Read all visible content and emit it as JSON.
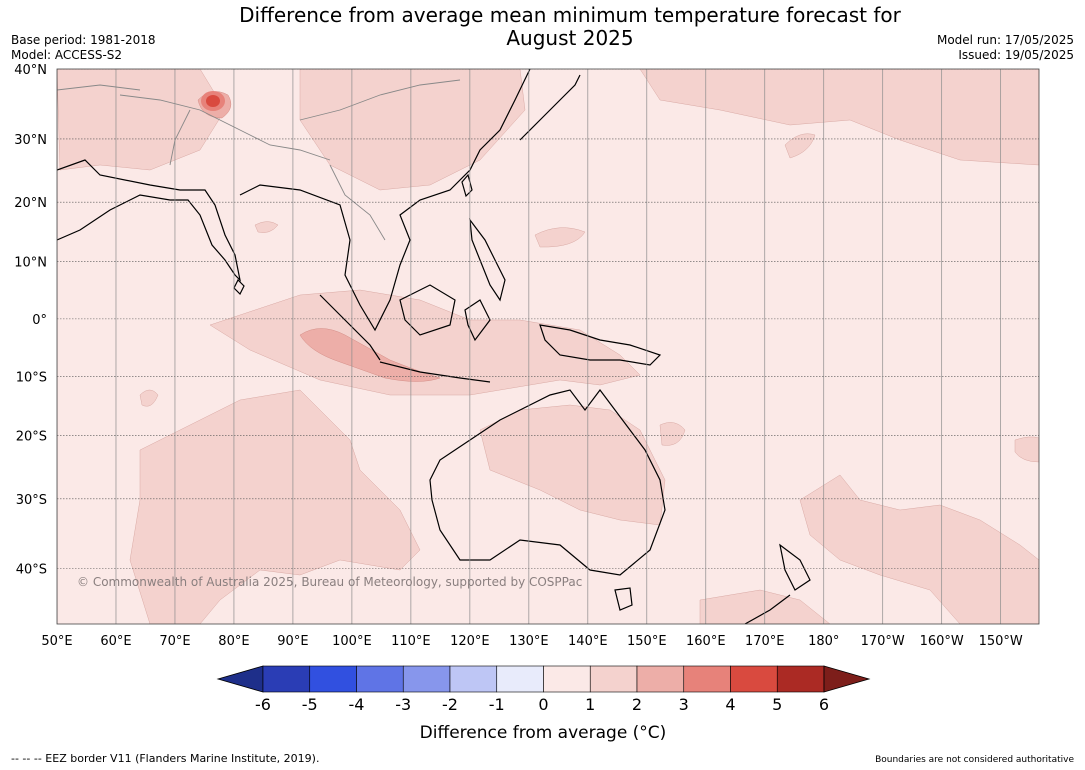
{
  "header": {
    "title_line1": "Difference from average mean minimum temperature forecast for",
    "title_line2": "August 2025",
    "base_period": "Base period: 1981-2018",
    "model": "Model: ACCESS-S2",
    "model_run": "Model run: 17/05/2025",
    "issued": "Issued: 19/05/2025"
  },
  "map": {
    "lat_labels": [
      "40°N",
      "30°N",
      "20°N",
      "10°N",
      "0°",
      "10°S",
      "20°S",
      "30°S",
      "40°S"
    ],
    "lat_values": [
      40,
      30,
      20,
      10,
      0,
      -10,
      -20,
      -30,
      -40
    ],
    "lon_labels": [
      "50°E",
      "60°E",
      "70°E",
      "80°E",
      "90°E",
      "100°E",
      "110°E",
      "120°E",
      "130°E",
      "140°E",
      "150°E",
      "160°E",
      "170°E",
      "180°",
      "170°W",
      "160°W",
      "150°W"
    ],
    "lon_values": [
      50,
      60,
      70,
      80,
      90,
      100,
      110,
      120,
      130,
      140,
      150,
      160,
      170,
      180,
      190,
      200,
      210
    ],
    "extent": {
      "lon_min": 50,
      "lon_max": 216.5,
      "lat_min": -47,
      "lat_max": 40
    },
    "copyright": "© Commonwealth of Australia 2025, Bureau of Meteorology, supported by COSPPac",
    "background_color": "#fbe9e7",
    "land_line_color": "#000000",
    "border_line_color": "#888888"
  },
  "colorbar": {
    "ticks": [
      "-6",
      "-5",
      "-4",
      "-3",
      "-2",
      "-1",
      "0",
      "1",
      "2",
      "3",
      "4",
      "5",
      "6"
    ],
    "colors": [
      "#1e2f8a",
      "#2a3db5",
      "#3150e0",
      "#5f74e6",
      "#8796ec",
      "#bec6f5",
      "#e8ebfb",
      "#fbe9e7",
      "#f4d2ce",
      "#edaea8",
      "#e7827a",
      "#d94a3f",
      "#ab2a24",
      "#7d1e1a"
    ],
    "title": "Difference from average (°C)"
  },
  "footer": {
    "eez_note": "--  --  -- EEZ border V11 (Flanders Marine Institute, 2019).",
    "boundaries_note": "Boundaries are not considered authoritative"
  }
}
